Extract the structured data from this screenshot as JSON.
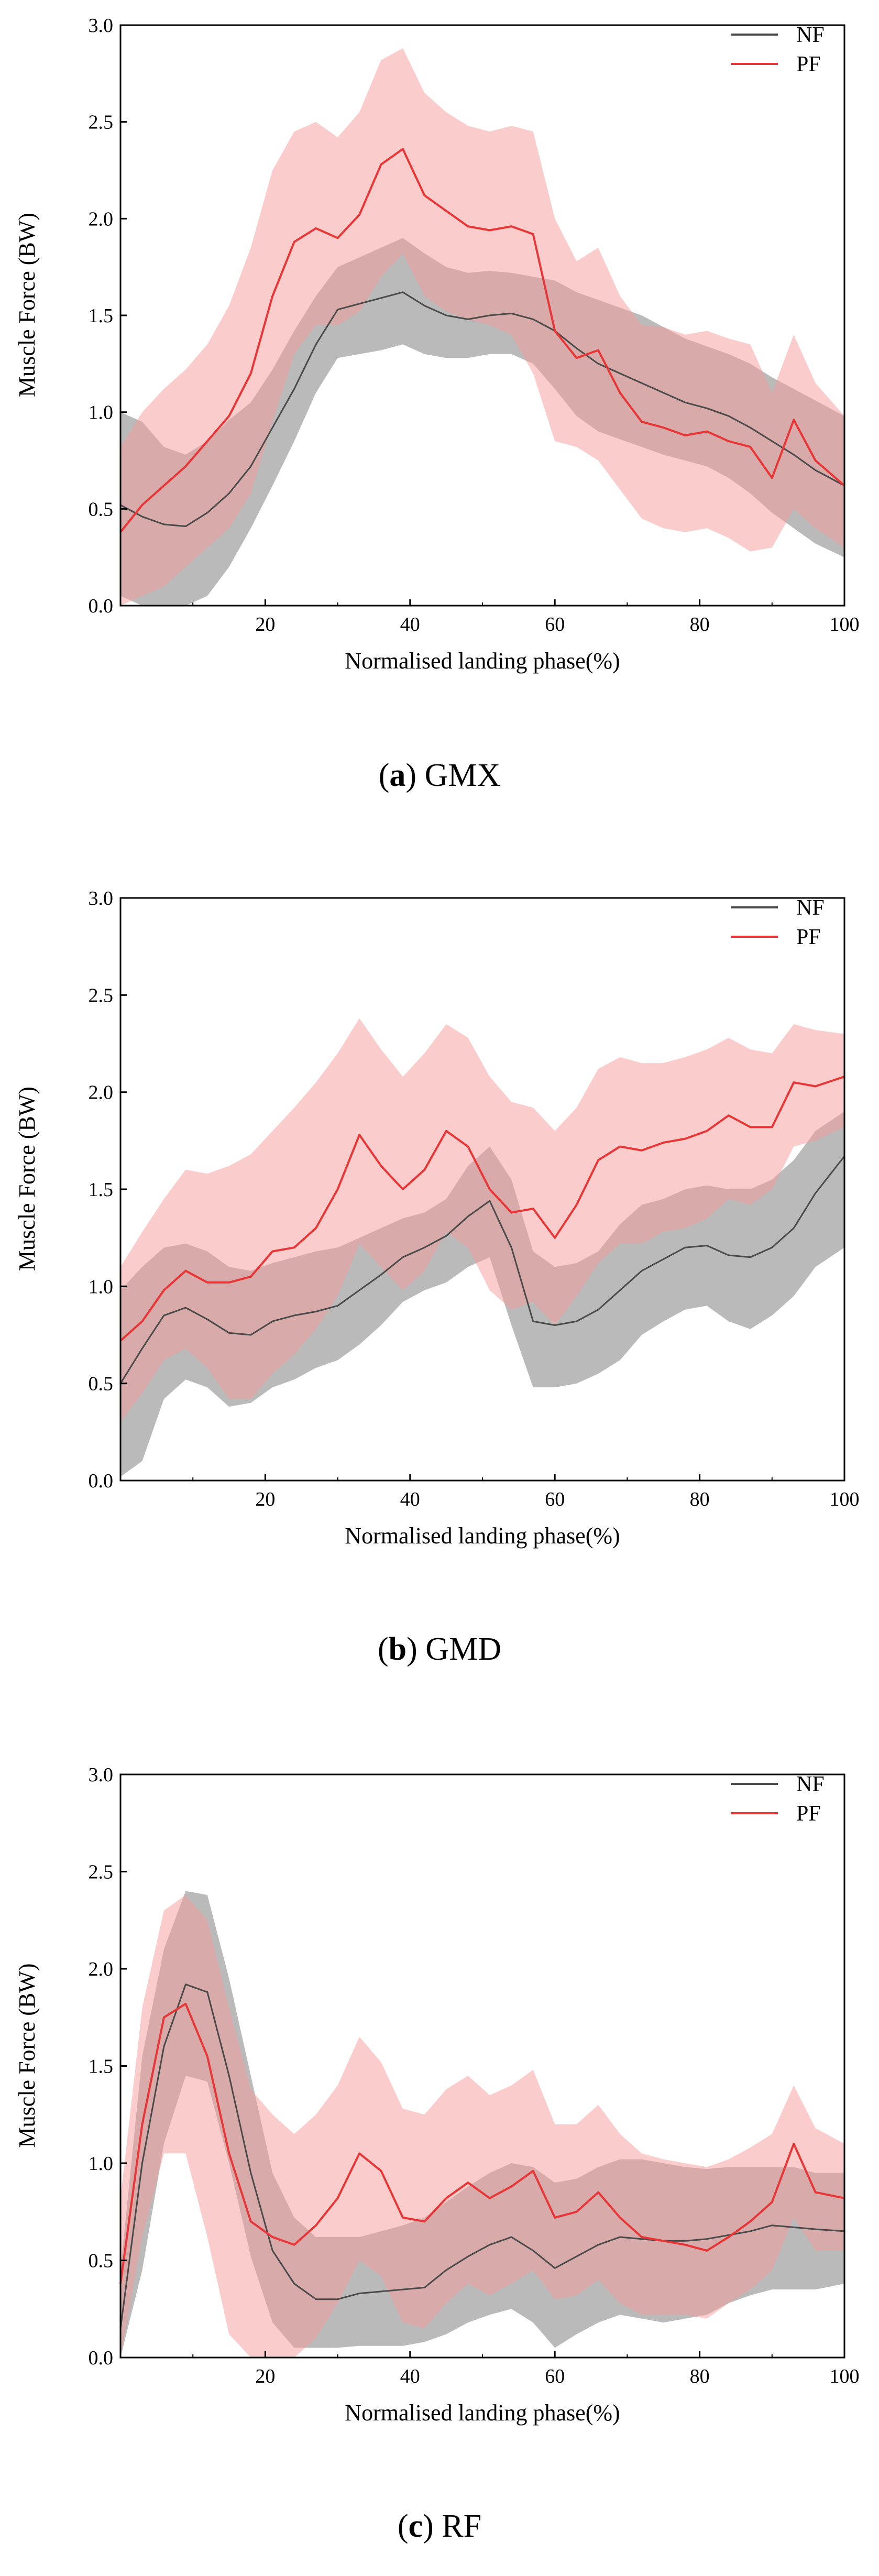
{
  "chart_data": [
    {
      "type": "line",
      "panel_letter": "a",
      "panel_title": "GMX",
      "title": "",
      "xlabel": "Normalised landing phase(%)",
      "ylabel": "Muscle Force (BW)",
      "xlim": [
        0,
        100
      ],
      "ylim": [
        0,
        3.0
      ],
      "x_ticks": [
        20,
        40,
        60,
        80,
        100
      ],
      "y_ticks": [
        0.0,
        0.5,
        1.0,
        1.5,
        2.0,
        2.5,
        3.0
      ],
      "x_tick_labels": [
        "20",
        "40",
        "60",
        "80",
        "100"
      ],
      "y_tick_labels": [
        "0.0",
        "0.5",
        "1.0",
        "1.5",
        "2.0",
        "2.5",
        "3.0"
      ],
      "legend_position": "top-right",
      "x": [
        0,
        3,
        6,
        9,
        12,
        15,
        18,
        21,
        24,
        27,
        30,
        33,
        36,
        39,
        42,
        45,
        48,
        51,
        54,
        57,
        60,
        63,
        66,
        69,
        72,
        75,
        78,
        81,
        84,
        87,
        90,
        93,
        96,
        100
      ],
      "series": [
        {
          "name": "NF",
          "color": "#4a4a4a",
          "band_color": "#8c8c8c",
          "values": [
            0.52,
            0.46,
            0.42,
            0.41,
            0.48,
            0.58,
            0.72,
            0.92,
            1.12,
            1.35,
            1.53,
            1.56,
            1.59,
            1.62,
            1.55,
            1.5,
            1.48,
            1.5,
            1.51,
            1.48,
            1.42,
            1.33,
            1.25,
            1.2,
            1.15,
            1.1,
            1.05,
            1.02,
            0.98,
            0.92,
            0.85,
            0.78,
            0.7,
            0.62
          ],
          "lower": [
            0.05,
            0.0,
            0.0,
            0.0,
            0.05,
            0.2,
            0.4,
            0.62,
            0.85,
            1.1,
            1.28,
            1.3,
            1.32,
            1.35,
            1.3,
            1.28,
            1.28,
            1.3,
            1.3,
            1.25,
            1.12,
            0.98,
            0.9,
            0.86,
            0.82,
            0.78,
            0.75,
            0.72,
            0.66,
            0.58,
            0.48,
            0.4,
            0.32,
            0.25
          ],
          "upper": [
            1.0,
            0.95,
            0.82,
            0.78,
            0.85,
            0.96,
            1.05,
            1.22,
            1.42,
            1.6,
            1.75,
            1.8,
            1.85,
            1.9,
            1.82,
            1.75,
            1.72,
            1.73,
            1.72,
            1.7,
            1.68,
            1.62,
            1.58,
            1.54,
            1.5,
            1.44,
            1.38,
            1.34,
            1.3,
            1.25,
            1.18,
            1.12,
            1.06,
            0.98
          ]
        },
        {
          "name": "PF",
          "color": "#e83535",
          "band_color": "#f89a9a",
          "values": [
            0.38,
            0.52,
            0.62,
            0.72,
            0.85,
            0.98,
            1.2,
            1.6,
            1.88,
            1.95,
            1.9,
            2.02,
            2.28,
            2.36,
            2.12,
            2.04,
            1.96,
            1.94,
            1.96,
            1.92,
            1.42,
            1.28,
            1.32,
            1.1,
            0.95,
            0.92,
            0.88,
            0.9,
            0.85,
            0.82,
            0.66,
            0.96,
            0.75,
            0.62
          ],
          "lower": [
            0.0,
            0.05,
            0.1,
            0.2,
            0.3,
            0.4,
            0.58,
            0.95,
            1.3,
            1.45,
            1.45,
            1.52,
            1.7,
            1.82,
            1.6,
            1.52,
            1.48,
            1.45,
            1.4,
            1.2,
            0.85,
            0.82,
            0.75,
            0.6,
            0.45,
            0.4,
            0.38,
            0.4,
            0.35,
            0.28,
            0.3,
            0.5,
            0.4,
            0.3
          ],
          "upper": [
            0.82,
            1.0,
            1.12,
            1.22,
            1.35,
            1.55,
            1.85,
            2.25,
            2.45,
            2.5,
            2.42,
            2.55,
            2.82,
            2.88,
            2.65,
            2.55,
            2.48,
            2.45,
            2.48,
            2.45,
            2.0,
            1.78,
            1.85,
            1.6,
            1.45,
            1.44,
            1.4,
            1.42,
            1.38,
            1.35,
            1.1,
            1.4,
            1.15,
            0.98
          ]
        }
      ]
    },
    {
      "type": "line",
      "panel_letter": "b",
      "panel_title": "GMD",
      "title": "",
      "xlabel": "Normalised landing phase(%)",
      "ylabel": "Muscle Force (BW)",
      "xlim": [
        0,
        100
      ],
      "ylim": [
        0,
        3.0
      ],
      "x_ticks": [
        20,
        40,
        60,
        80,
        100
      ],
      "y_ticks": [
        0.0,
        0.5,
        1.0,
        1.5,
        2.0,
        2.5,
        3.0
      ],
      "x_tick_labels": [
        "20",
        "40",
        "60",
        "80",
        "100"
      ],
      "y_tick_labels": [
        "0.0",
        "0.5",
        "1.0",
        "1.5",
        "2.0",
        "2.5",
        "3.0"
      ],
      "legend_position": "top-right",
      "x": [
        0,
        3,
        6,
        9,
        12,
        15,
        18,
        21,
        24,
        27,
        30,
        33,
        36,
        39,
        42,
        45,
        48,
        51,
        54,
        57,
        60,
        63,
        66,
        69,
        72,
        75,
        78,
        81,
        84,
        87,
        90,
        93,
        96,
        100
      ],
      "series": [
        {
          "name": "NF",
          "color": "#4a4a4a",
          "band_color": "#8c8c8c",
          "values": [
            0.5,
            0.68,
            0.85,
            0.89,
            0.83,
            0.76,
            0.75,
            0.82,
            0.85,
            0.87,
            0.9,
            0.98,
            1.06,
            1.15,
            1.2,
            1.26,
            1.36,
            1.44,
            1.2,
            0.82,
            0.8,
            0.82,
            0.88,
            0.98,
            1.08,
            1.14,
            1.2,
            1.21,
            1.16,
            1.15,
            1.2,
            1.3,
            1.48,
            1.67
          ],
          "lower": [
            0.02,
            0.1,
            0.42,
            0.52,
            0.48,
            0.38,
            0.4,
            0.48,
            0.52,
            0.58,
            0.62,
            0.7,
            0.8,
            0.92,
            0.98,
            1.02,
            1.1,
            1.15,
            0.8,
            0.48,
            0.48,
            0.5,
            0.55,
            0.62,
            0.75,
            0.82,
            0.88,
            0.9,
            0.82,
            0.78,
            0.85,
            0.95,
            1.1,
            1.2
          ],
          "upper": [
            0.98,
            1.1,
            1.2,
            1.22,
            1.18,
            1.1,
            1.08,
            1.12,
            1.15,
            1.18,
            1.2,
            1.25,
            1.3,
            1.35,
            1.38,
            1.45,
            1.62,
            1.72,
            1.55,
            1.18,
            1.1,
            1.12,
            1.18,
            1.32,
            1.42,
            1.45,
            1.5,
            1.52,
            1.5,
            1.5,
            1.55,
            1.65,
            1.8,
            1.9
          ]
        },
        {
          "name": "PF",
          "color": "#e83535",
          "band_color": "#f89a9a",
          "values": [
            0.72,
            0.82,
            0.98,
            1.08,
            1.02,
            1.02,
            1.05,
            1.18,
            1.2,
            1.3,
            1.5,
            1.78,
            1.62,
            1.5,
            1.6,
            1.8,
            1.72,
            1.5,
            1.38,
            1.4,
            1.25,
            1.42,
            1.65,
            1.72,
            1.7,
            1.74,
            1.76,
            1.8,
            1.88,
            1.82,
            1.82,
            2.05,
            2.03,
            2.08
          ],
          "lower": [
            0.3,
            0.45,
            0.62,
            0.68,
            0.58,
            0.42,
            0.42,
            0.55,
            0.65,
            0.78,
            0.95,
            1.22,
            1.1,
            0.98,
            1.08,
            1.28,
            1.2,
            0.98,
            0.88,
            0.92,
            0.8,
            0.95,
            1.12,
            1.22,
            1.22,
            1.28,
            1.3,
            1.35,
            1.45,
            1.42,
            1.5,
            1.72,
            1.75,
            1.82
          ],
          "upper": [
            1.1,
            1.28,
            1.45,
            1.6,
            1.58,
            1.62,
            1.68,
            1.8,
            1.92,
            2.05,
            2.2,
            2.38,
            2.22,
            2.08,
            2.2,
            2.35,
            2.28,
            2.08,
            1.95,
            1.92,
            1.8,
            1.92,
            2.12,
            2.18,
            2.15,
            2.15,
            2.18,
            2.22,
            2.28,
            2.22,
            2.2,
            2.35,
            2.32,
            2.3
          ]
        }
      ]
    },
    {
      "type": "line",
      "panel_letter": "c",
      "panel_title": "RF",
      "title": "",
      "xlabel": "Normalised landing phase(%)",
      "ylabel": "Muscle Force (BW)",
      "xlim": [
        0,
        100
      ],
      "ylim": [
        0,
        3.0
      ],
      "x_ticks": [
        20,
        40,
        60,
        80,
        100
      ],
      "y_ticks": [
        0.0,
        0.5,
        1.0,
        1.5,
        2.0,
        2.5,
        3.0
      ],
      "x_tick_labels": [
        "20",
        "40",
        "60",
        "80",
        "100"
      ],
      "y_tick_labels": [
        "0.0",
        "0.5",
        "1.0",
        "1.5",
        "2.0",
        "2.5",
        "3.0"
      ],
      "legend_position": "top-right",
      "x": [
        0,
        3,
        6,
        9,
        12,
        15,
        18,
        21,
        24,
        27,
        30,
        33,
        36,
        39,
        42,
        45,
        48,
        51,
        54,
        57,
        60,
        63,
        66,
        69,
        72,
        75,
        78,
        81,
        84,
        87,
        90,
        93,
        96,
        100
      ],
      "series": [
        {
          "name": "NF",
          "color": "#4a4a4a",
          "band_color": "#8c8c8c",
          "values": [
            0.15,
            1.0,
            1.6,
            1.92,
            1.88,
            1.45,
            0.95,
            0.55,
            0.38,
            0.3,
            0.3,
            0.33,
            0.34,
            0.35,
            0.36,
            0.45,
            0.52,
            0.58,
            0.62,
            0.55,
            0.46,
            0.52,
            0.58,
            0.62,
            0.61,
            0.6,
            0.6,
            0.61,
            0.63,
            0.65,
            0.68,
            0.67,
            0.66,
            0.65
          ],
          "lower": [
            0.0,
            0.45,
            1.1,
            1.45,
            1.42,
            1.0,
            0.52,
            0.18,
            0.05,
            0.05,
            0.05,
            0.06,
            0.06,
            0.06,
            0.08,
            0.12,
            0.18,
            0.22,
            0.25,
            0.18,
            0.05,
            0.12,
            0.18,
            0.22,
            0.2,
            0.18,
            0.2,
            0.22,
            0.28,
            0.32,
            0.35,
            0.35,
            0.35,
            0.38
          ],
          "upper": [
            0.45,
            1.55,
            2.1,
            2.4,
            2.38,
            1.95,
            1.45,
            0.95,
            0.72,
            0.62,
            0.62,
            0.62,
            0.65,
            0.68,
            0.72,
            0.8,
            0.88,
            0.95,
            1.0,
            0.98,
            0.9,
            0.92,
            0.98,
            1.02,
            1.02,
            1.0,
            0.98,
            0.97,
            0.98,
            0.98,
            0.98,
            0.98,
            0.95,
            0.95
          ]
        },
        {
          "name": "PF",
          "color": "#e83535",
          "band_color": "#f89a9a",
          "values": [
            0.38,
            1.2,
            1.75,
            1.82,
            1.55,
            1.05,
            0.7,
            0.62,
            0.58,
            0.68,
            0.82,
            1.05,
            0.96,
            0.72,
            0.7,
            0.82,
            0.9,
            0.82,
            0.88,
            0.96,
            0.72,
            0.75,
            0.85,
            0.72,
            0.62,
            0.6,
            0.58,
            0.55,
            0.62,
            0.7,
            0.8,
            1.1,
            0.85,
            0.82
          ],
          "lower": [
            0.0,
            0.62,
            1.05,
            1.05,
            0.62,
            0.12,
            0.0,
            0.0,
            0.0,
            0.1,
            0.28,
            0.5,
            0.42,
            0.18,
            0.15,
            0.28,
            0.38,
            0.32,
            0.38,
            0.45,
            0.3,
            0.32,
            0.4,
            0.28,
            0.22,
            0.22,
            0.22,
            0.2,
            0.28,
            0.35,
            0.45,
            0.72,
            0.55,
            0.55
          ],
          "upper": [
            0.82,
            1.8,
            2.3,
            2.38,
            2.25,
            1.8,
            1.38,
            1.25,
            1.15,
            1.25,
            1.4,
            1.65,
            1.52,
            1.28,
            1.25,
            1.38,
            1.45,
            1.35,
            1.4,
            1.48,
            1.2,
            1.2,
            1.3,
            1.15,
            1.05,
            1.02,
            1.0,
            0.98,
            1.02,
            1.08,
            1.15,
            1.4,
            1.18,
            1.1
          ]
        }
      ]
    }
  ],
  "panels": [
    {
      "caption_letter": "a",
      "caption_title": "GMX"
    },
    {
      "caption_letter": "b",
      "caption_title": "GMD"
    },
    {
      "caption_letter": "c",
      "caption_title": "RF"
    }
  ]
}
